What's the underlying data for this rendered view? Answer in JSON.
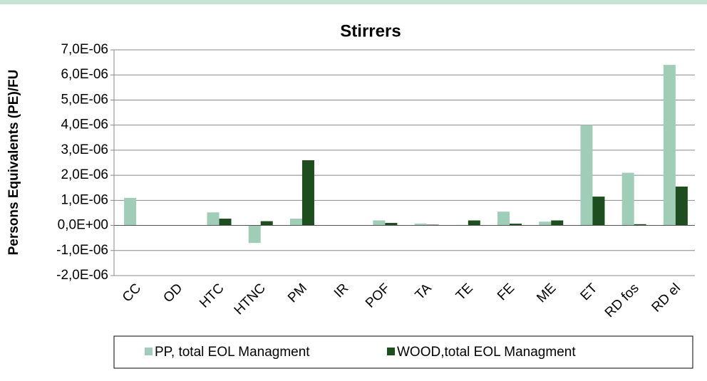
{
  "chart_data": {
    "type": "bar",
    "title": "Stirrers",
    "y_label": "Persons Equivalents (PE)/FU",
    "categories": [
      "CC",
      "OD",
      "HTC",
      "HTNC",
      "PM",
      "IR",
      "POF",
      "TA",
      "TE",
      "FE",
      "ME",
      "ET",
      "RD fos",
      "RD el"
    ],
    "series": [
      {
        "name": "PP, total EOL Managment",
        "color": "#9fcdb8",
        "values": [
          1.1e-06,
          0,
          5.2e-07,
          -7e-07,
          2.7e-07,
          0,
          2e-07,
          7e-08,
          2e-08,
          5.5e-07,
          1.5e-07,
          4e-06,
          2.1e-06,
          6.4e-06
        ]
      },
      {
        "name": "WOOD,total  EOL Managment",
        "color": "#1e4d20",
        "values": [
          0,
          0,
          2.7e-07,
          1.7e-07,
          2.6e-06,
          0,
          1e-07,
          3e-08,
          2e-07,
          7e-08,
          2e-07,
          1.15e-06,
          5e-08,
          1.55e-06
        ]
      }
    ],
    "ylim": [
      -2e-06,
      7e-06
    ],
    "yticks": [
      {
        "value": -2e-06,
        "label": "-2,0E-06"
      },
      {
        "value": -1e-06,
        "label": "-1,0E-06"
      },
      {
        "value": 0,
        "label": "0,0E+00"
      },
      {
        "value": 1e-06,
        "label": "1,0E-06"
      },
      {
        "value": 2e-06,
        "label": "2,0E-06"
      },
      {
        "value": 3e-06,
        "label": "3,0E-06"
      },
      {
        "value": 4e-06,
        "label": "4,0E-06"
      },
      {
        "value": 5e-06,
        "label": "5,0E-06"
      },
      {
        "value": 6e-06,
        "label": "6,0E-06"
      },
      {
        "value": 7e-06,
        "label": "7,0E-06"
      }
    ],
    "grid": true,
    "legend": "bottom"
  }
}
